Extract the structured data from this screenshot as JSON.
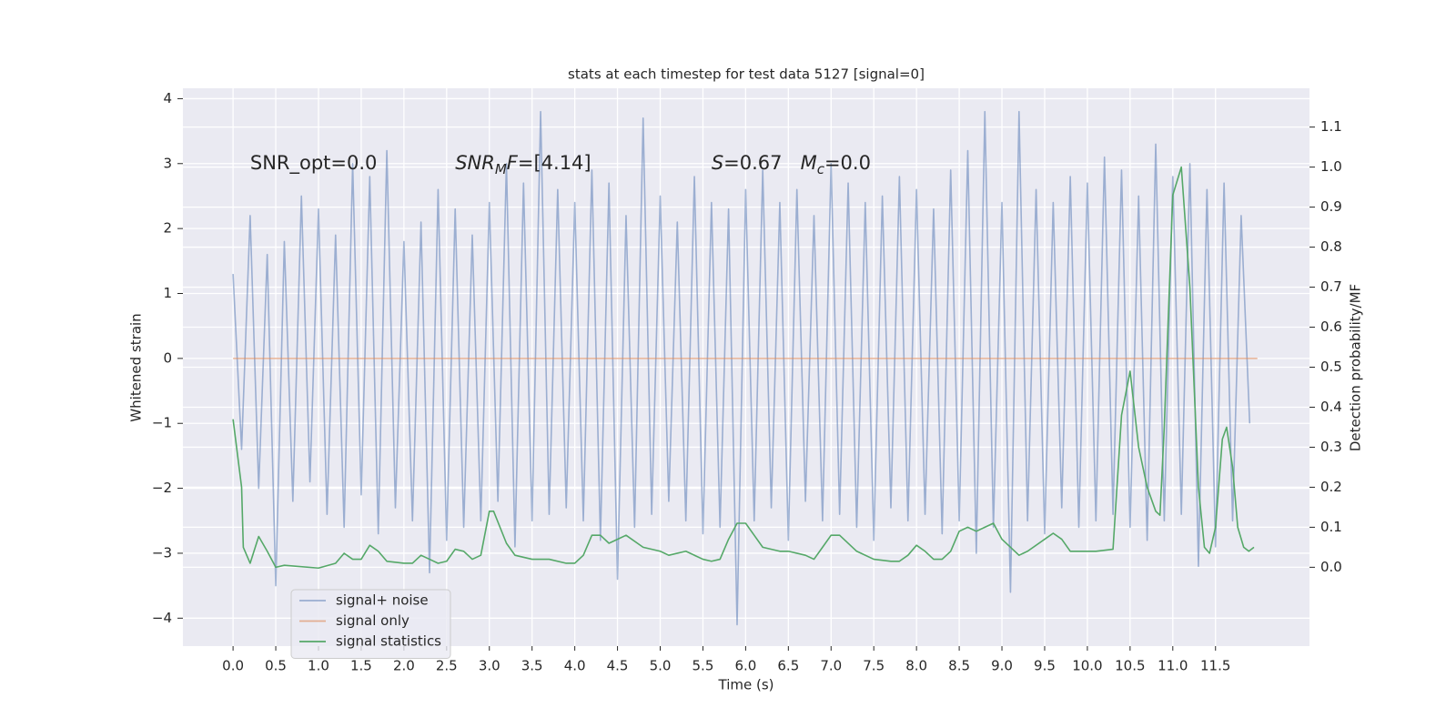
{
  "chart_data": {
    "type": "line",
    "title": "stats at each timestep for test data 5127 [signal=0]",
    "xlabel": "Time (s)",
    "ylabel": "Whitened strain",
    "y2label": "Detection probability/MF",
    "xlim": [
      -0.587,
      12.6
    ],
    "ylim": [
      -4.43,
      4.16
    ],
    "y2lim": [
      -0.197,
      1.197
    ],
    "xticks": [
      {
        "value": 0,
        "label": "0.0"
      },
      {
        "value": 0.5,
        "label": "0.5"
      },
      {
        "value": 1,
        "label": "1.0"
      },
      {
        "value": 1.5,
        "label": "1.5"
      },
      {
        "value": 2,
        "label": "2.0"
      },
      {
        "value": 2.5,
        "label": "2.5"
      },
      {
        "value": 3,
        "label": "3.0"
      },
      {
        "value": 3.5,
        "label": "3.5"
      },
      {
        "value": 4,
        "label": "4.0"
      },
      {
        "value": 4.5,
        "label": "4.5"
      },
      {
        "value": 5,
        "label": "5.0"
      },
      {
        "value": 5.5,
        "label": "5.5"
      },
      {
        "value": 6,
        "label": "6.0"
      },
      {
        "value": 6.5,
        "label": "6.5"
      },
      {
        "value": 7,
        "label": "7.0"
      },
      {
        "value": 7.5,
        "label": "7.5"
      },
      {
        "value": 8,
        "label": "8.0"
      },
      {
        "value": 8.5,
        "label": "8.5"
      },
      {
        "value": 9,
        "label": "9.0"
      },
      {
        "value": 9.5,
        "label": "9.5"
      },
      {
        "value": 10,
        "label": "10.0"
      },
      {
        "value": 10.5,
        "label": "10.5"
      },
      {
        "value": 11,
        "label": "11.0"
      },
      {
        "value": 11.5,
        "label": "11.5"
      }
    ],
    "yticks": [
      {
        "value": -4,
        "label": "−4"
      },
      {
        "value": -3,
        "label": "−3"
      },
      {
        "value": -2,
        "label": "−2"
      },
      {
        "value": -1,
        "label": "−1"
      },
      0,
      1,
      2,
      3,
      4
    ],
    "y2ticks": [
      {
        "value": 0,
        "label": "0.0"
      },
      {
        "value": 0.1,
        "label": "0.1"
      },
      {
        "value": 0.2,
        "label": "0.2"
      },
      {
        "value": 0.3,
        "label": "0.3"
      },
      {
        "value": 0.4,
        "label": "0.4"
      },
      {
        "value": 0.5,
        "label": "0.5"
      },
      {
        "value": 0.6,
        "label": "0.6"
      },
      {
        "value": 0.7,
        "label": "0.7"
      },
      {
        "value": 0.8,
        "label": "0.8"
      },
      {
        "value": 0.9,
        "label": "0.9"
      },
      {
        "value": 1,
        "label": "1.0"
      },
      {
        "value": 1.1,
        "label": "1.1"
      }
    ],
    "grid": true,
    "legend": "lower left",
    "annotations": [
      [
        {
          "text": "SNR_opt=0.0"
        }
      ],
      [
        {
          "text": "SNR",
          "italic": true
        },
        {
          "text": "M",
          "italic": true,
          "sub": true
        },
        {
          "text": "F",
          "italic": true
        },
        {
          "text": "=[4.14]"
        }
      ],
      [
        {
          "text": "S",
          "italic": true
        },
        {
          "text": "=0.67   "
        },
        {
          "text": "M",
          "italic": true
        },
        {
          "text": "c",
          "italic": true,
          "sub": true
        },
        {
          "text": "=0.0"
        }
      ]
    ],
    "series": [
      {
        "name": "signal+ noise",
        "color": "#4c72b0",
        "opacity": 0.5,
        "x": [
          0.0,
          0.1,
          0.2,
          0.3,
          0.4,
          0.5,
          0.6,
          0.7,
          0.8,
          0.9,
          1.0,
          1.1,
          1.2,
          1.3,
          1.4,
          1.5,
          1.6,
          1.7,
          1.8,
          1.9,
          2.0,
          2.1,
          2.2,
          2.3,
          2.4,
          2.5,
          2.6,
          2.7,
          2.8,
          2.9,
          3.0,
          3.1,
          3.2,
          3.3,
          3.4,
          3.5,
          3.6,
          3.7,
          3.8,
          3.9,
          4.0,
          4.1,
          4.2,
          4.3,
          4.4,
          4.5,
          4.6,
          4.7,
          4.8,
          4.9,
          5.0,
          5.1,
          5.2,
          5.3,
          5.4,
          5.5,
          5.6,
          5.7,
          5.8,
          5.9,
          6.0,
          6.1,
          6.2,
          6.3,
          6.4,
          6.5,
          6.6,
          6.7,
          6.8,
          6.9,
          7.0,
          7.1,
          7.2,
          7.3,
          7.4,
          7.5,
          7.6,
          7.7,
          7.8,
          7.9,
          8.0,
          8.1,
          8.2,
          8.3,
          8.4,
          8.5,
          8.6,
          8.7,
          8.8,
          8.9,
          9.0,
          9.1,
          9.2,
          9.3,
          9.4,
          9.5,
          9.6,
          9.7,
          9.8,
          9.9,
          10.0,
          10.1,
          10.2,
          10.3,
          10.4,
          10.5,
          10.6,
          10.7,
          10.8,
          10.9,
          11.0,
          11.1,
          11.2,
          11.3,
          11.4,
          11.5,
          11.6,
          11.7,
          11.8,
          11.9
        ],
        "values": [
          1.3,
          -1.4,
          2.2,
          -2.0,
          1.6,
          -3.5,
          1.8,
          -2.2,
          2.5,
          -1.9,
          2.3,
          -2.4,
          1.9,
          -2.6,
          3.0,
          -2.1,
          2.8,
          -2.7,
          3.2,
          -2.3,
          1.8,
          -2.5,
          2.1,
          -3.3,
          2.6,
          -2.8,
          2.3,
          -2.6,
          1.9,
          -2.5,
          2.4,
          -2.2,
          3.0,
          -2.9,
          2.7,
          -2.5,
          3.8,
          -2.4,
          2.6,
          -2.3,
          2.4,
          -2.5,
          2.9,
          -2.8,
          2.7,
          -3.4,
          2.2,
          -2.6,
          3.7,
          -2.4,
          2.5,
          -2.2,
          2.1,
          -2.5,
          2.8,
          -2.7,
          2.4,
          -2.6,
          2.3,
          -4.1,
          2.6,
          -2.5,
          2.9,
          -2.3,
          2.4,
          -2.8,
          2.6,
          -2.2,
          2.2,
          -2.5,
          3.0,
          -2.4,
          2.7,
          -2.6,
          2.4,
          -2.8,
          2.5,
          -2.3,
          2.8,
          -2.5,
          2.6,
          -2.4,
          2.3,
          -2.7,
          2.9,
          -2.5,
          3.2,
          -3.0,
          3.8,
          -2.6,
          2.4,
          -3.6,
          3.8,
          -2.5,
          2.6,
          -2.7,
          2.4,
          -2.3,
          2.8,
          -2.6,
          2.7,
          -2.5,
          3.1,
          -2.4,
          2.9,
          -2.6,
          2.5,
          -2.8,
          3.3,
          -2.5,
          2.8,
          -2.4,
          3.0,
          -3.2,
          2.6,
          -2.9,
          2.7,
          -2.5,
          2.2,
          -1.0
        ]
      },
      {
        "name": "signal only",
        "color": "#dd8452",
        "opacity": 0.6,
        "x": [
          0.0,
          11.99
        ],
        "values": [
          0,
          0
        ]
      },
      {
        "name": "signal statistics",
        "color": "#55a868",
        "opacity": 1,
        "axis": "y2",
        "x": [
          0.0,
          0.1,
          0.12,
          0.2,
          0.3,
          0.4,
          0.5,
          0.6,
          1.0,
          1.2,
          1.3,
          1.4,
          1.5,
          1.6,
          1.7,
          1.8,
          2.0,
          2.1,
          2.2,
          2.3,
          2.4,
          2.5,
          2.6,
          2.7,
          2.8,
          2.9,
          3.0,
          3.05,
          3.2,
          3.3,
          3.5,
          3.7,
          3.9,
          4.0,
          4.1,
          4.2,
          4.3,
          4.4,
          4.5,
          4.6,
          4.8,
          5.0,
          5.1,
          5.3,
          5.5,
          5.6,
          5.7,
          5.8,
          5.9,
          6.0,
          6.1,
          6.2,
          6.4,
          6.5,
          6.7,
          6.8,
          6.9,
          7.0,
          7.1,
          7.3,
          7.5,
          7.7,
          7.8,
          7.9,
          8.0,
          8.1,
          8.2,
          8.3,
          8.4,
          8.5,
          8.6,
          8.7,
          8.8,
          8.9,
          9.0,
          9.2,
          9.3,
          9.5,
          9.6,
          9.7,
          9.8,
          10.0,
          10.1,
          10.3,
          10.4,
          10.5,
          10.6,
          10.7,
          10.8,
          10.85,
          10.9,
          11.0,
          11.1,
          11.2,
          11.3,
          11.37,
          11.43,
          11.5,
          11.58,
          11.63,
          11.7,
          11.76,
          11.83,
          11.89,
          11.95
        ],
        "values": [
          0.37,
          0.2,
          0.05,
          0.01,
          0.077,
          0.04,
          0.0,
          0.005,
          -0.002,
          0.01,
          0.035,
          0.02,
          0.02,
          0.055,
          0.04,
          0.015,
          0.01,
          0.01,
          0.03,
          0.02,
          0.01,
          0.015,
          0.045,
          0.04,
          0.02,
          0.03,
          0.14,
          0.14,
          0.06,
          0.03,
          0.02,
          0.02,
          0.01,
          0.01,
          0.03,
          0.08,
          0.08,
          0.06,
          0.07,
          0.08,
          0.05,
          0.04,
          0.03,
          0.04,
          0.02,
          0.015,
          0.02,
          0.07,
          0.11,
          0.11,
          0.08,
          0.05,
          0.04,
          0.04,
          0.03,
          0.02,
          0.05,
          0.08,
          0.08,
          0.04,
          0.02,
          0.015,
          0.015,
          0.03,
          0.055,
          0.04,
          0.02,
          0.02,
          0.04,
          0.09,
          0.1,
          0.09,
          0.1,
          0.11,
          0.07,
          0.03,
          0.04,
          0.07,
          0.085,
          0.07,
          0.04,
          0.04,
          0.04,
          0.045,
          0.38,
          0.49,
          0.3,
          0.2,
          0.14,
          0.13,
          0.35,
          0.93,
          1.0,
          0.7,
          0.2,
          0.05,
          0.035,
          0.1,
          0.32,
          0.35,
          0.25,
          0.1,
          0.05,
          0.04,
          0.05
        ]
      }
    ]
  }
}
